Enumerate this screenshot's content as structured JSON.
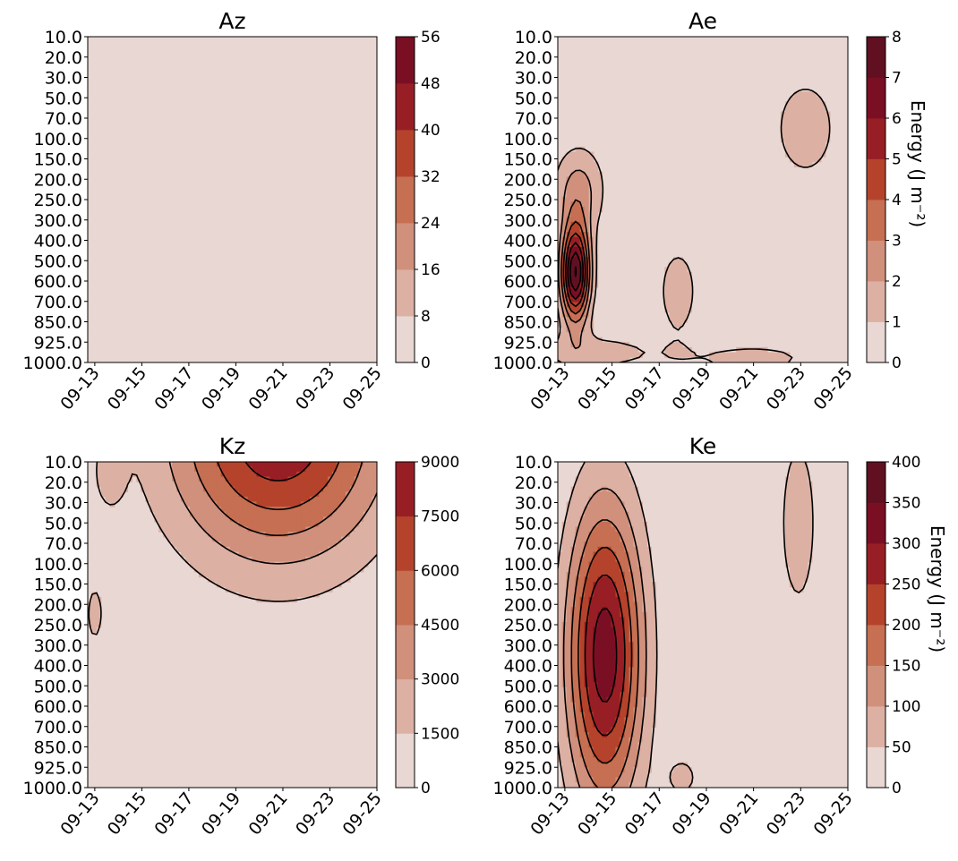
{
  "chart_data": [
    {
      "type": "contour",
      "title": "Az",
      "x_tick_labels": [
        "09-13",
        "09-15",
        "09-17",
        "09-19",
        "09-21",
        "09-23",
        "09-25"
      ],
      "y_tick_labels": [
        "10.0",
        "20.0",
        "30.0",
        "50.0",
        "70.0",
        "100.0",
        "150.0",
        "200.0",
        "250.0",
        "300.0",
        "400.0",
        "500.0",
        "600.0",
        "700.0",
        "850.0",
        "925.0",
        "1000.0"
      ],
      "colorbar": {
        "levels": [
          0,
          8,
          16,
          24,
          32,
          40,
          48,
          56
        ],
        "tick_labels": [
          "0",
          "8",
          "16",
          "24",
          "32",
          "40",
          "48",
          "56"
        ],
        "label": ""
      },
      "features": [
        {
          "label": "1",
          "date": 5.2,
          "level_index": 6.5,
          "date_radius": 1.8,
          "level_radius": 3.6,
          "peak": 0.9
        },
        {
          "label": "2",
          "date": 0.15,
          "level_index": 10.5,
          "date_radius": 0.35,
          "level_radius": 4.3,
          "peak": 0.75
        },
        {
          "label": "3",
          "date": 8.3,
          "level_index": 15.8,
          "date_radius": 1.7,
          "level_radius": 1.2,
          "peak": 1.3
        },
        {
          "label": "4",
          "date": 10.9,
          "level_index": 16.0,
          "date_radius": 1.0,
          "level_radius": 0.9,
          "peak": 2.5
        },
        {
          "label": "5",
          "date": 10.5,
          "level_index": 11.0,
          "date_radius": 0.2,
          "level_radius": 0.3,
          "peak": 0.6
        }
      ]
    },
    {
      "type": "contour",
      "title": "Ae",
      "x_tick_labels": [
        "09-13",
        "09-15",
        "09-17",
        "09-19",
        "09-21",
        "09-23",
        "09-25"
      ],
      "y_tick_labels": [
        "10.0",
        "20.0",
        "30.0",
        "50.0",
        "70.0",
        "100.0",
        "150.0",
        "200.0",
        "250.0",
        "300.0",
        "400.0",
        "500.0",
        "600.0",
        "700.0",
        "850.0",
        "925.0",
        "1000.0"
      ],
      "colorbar": {
        "levels": [
          0,
          1,
          2,
          3,
          4,
          5,
          6,
          7,
          8
        ],
        "tick_labels": [
          "0",
          "1",
          "2",
          "3",
          "4",
          "5",
          "6",
          "7",
          "8"
        ],
        "label": "Energy  (J m⁻²)"
      },
      "features": [
        {
          "label": "1",
          "date": 0.45,
          "level_index": 11.6,
          "date_radius": 0.6,
          "level_radius": 2.4,
          "peak": 8.0
        },
        {
          "label": "2",
          "date": 0.6,
          "level_index": 7.5,
          "date_radius": 1.1,
          "level_radius": 2.2,
          "peak": 2.3
        },
        {
          "label": "3",
          "date": 1.2,
          "level_index": 15.5,
          "date_radius": 3.0,
          "level_radius": 1.0,
          "peak": 1.4
        },
        {
          "label": "4",
          "date": 4.8,
          "level_index": 12.5,
          "date_radius": 0.9,
          "level_radius": 2.4,
          "peak": 1.6
        },
        {
          "label": "5",
          "date": 10.2,
          "level_index": 4.5,
          "date_radius": 1.5,
          "level_radius": 2.8,
          "peak": 1.6
        },
        {
          "label": "6",
          "date": 8.0,
          "level_index": 15.8,
          "date_radius": 3.2,
          "level_radius": 0.9,
          "peak": 1.3
        }
      ]
    },
    {
      "type": "contour",
      "title": "Kz",
      "x_tick_labels": [
        "09-13",
        "09-15",
        "09-17",
        "09-19",
        "09-21",
        "09-23",
        "09-25"
      ],
      "y_tick_labels": [
        "10.0",
        "20.0",
        "30.0",
        "50.0",
        "70.0",
        "100.0",
        "150.0",
        "200.0",
        "250.0",
        "300.0",
        "400.0",
        "500.0",
        "600.0",
        "700.0",
        "850.0",
        "925.0",
        "1000.0"
      ],
      "colorbar": {
        "levels": [
          0,
          1500,
          3000,
          4500,
          6000,
          7500,
          9000
        ],
        "tick_labels": [
          "0",
          "1500",
          "3000",
          "4500",
          "6000",
          "7500",
          "9000"
        ],
        "label": ""
      },
      "features": [
        {
          "label": "1",
          "date": 7.8,
          "level_index": -1.5,
          "date_radius": 4.6,
          "level_radius": 6.3,
          "peak": 8700
        },
        {
          "label": "2",
          "date": 0.6,
          "level_index": 0.5,
          "date_radius": 0.7,
          "level_radius": 2.0,
          "peak": 1800
        },
        {
          "label": "3",
          "date": 0.0,
          "level_index": 7.5,
          "date_radius": 0.5,
          "level_radius": 2.0,
          "peak": 1900
        }
      ]
    },
    {
      "type": "contour",
      "title": "Ke",
      "x_tick_labels": [
        "09-13",
        "09-15",
        "09-17",
        "09-19",
        "09-21",
        "09-23",
        "09-25"
      ],
      "y_tick_labels": [
        "10.0",
        "20.0",
        "30.0",
        "50.0",
        "70.0",
        "100.0",
        "150.0",
        "200.0",
        "250.0",
        "300.0",
        "400.0",
        "500.0",
        "600.0",
        "700.0",
        "850.0",
        "925.0",
        "1000.0"
      ],
      "colorbar": {
        "levels": [
          0,
          50,
          100,
          150,
          200,
          250,
          300,
          350,
          400
        ],
        "tick_labels": [
          "0",
          "50",
          "100",
          "150",
          "200",
          "250",
          "300",
          "350",
          "400"
        ],
        "label": "Energy  (J m⁻²)"
      },
      "features": [
        {
          "label": "1",
          "date": 1.7,
          "level_index": 9.5,
          "date_radius": 1.6,
          "level_radius": 7.5,
          "peak": 330
        },
        {
          "label": "2",
          "date": 9.9,
          "level_index": 3.0,
          "date_radius": 0.9,
          "level_radius": 5.0,
          "peak": 80
        },
        {
          "label": "3",
          "date": 5.0,
          "level_index": 15.5,
          "date_radius": 0.8,
          "level_radius": 1.2,
          "peak": 65
        }
      ]
    }
  ],
  "colors": {
    "fill": [
      "#e9d7d3",
      "#dcb0a3",
      "#d0907c",
      "#c66f52",
      "#b5432c",
      "#981e25",
      "#7a0f24",
      "#611022",
      "#3f0a14"
    ],
    "contour_line": "#000000",
    "background": "#ffffff"
  }
}
